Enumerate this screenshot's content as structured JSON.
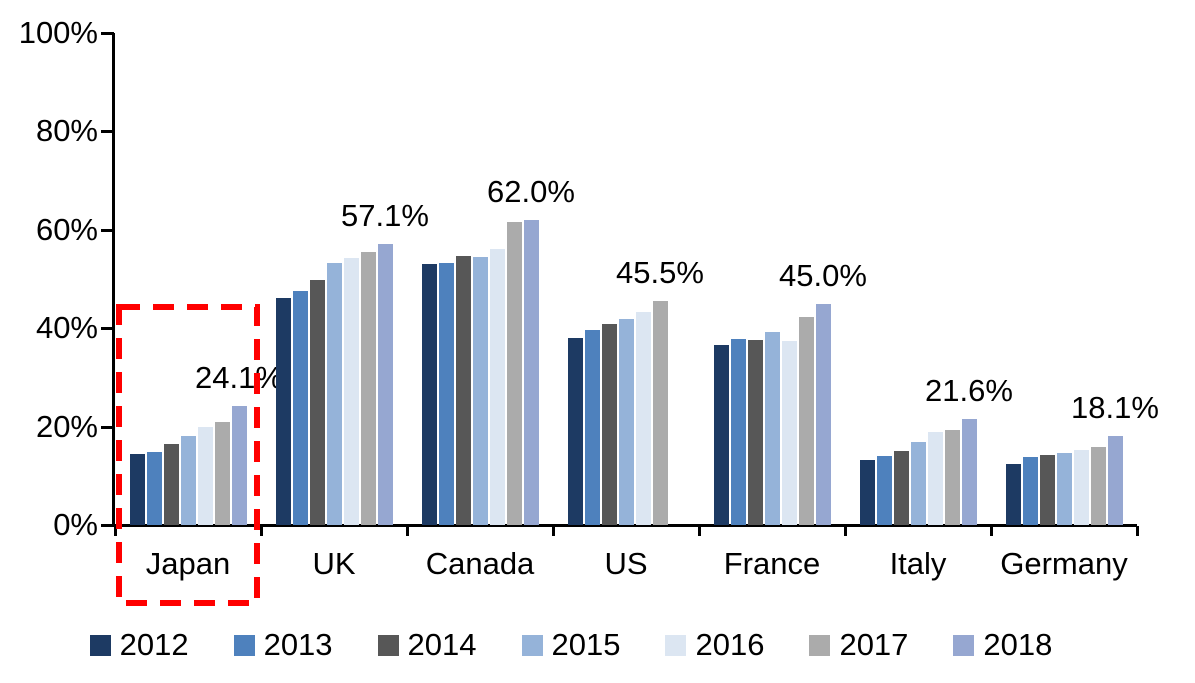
{
  "chart_data": {
    "type": "bar",
    "title": "",
    "xlabel": "",
    "ylabel": "",
    "categories": [
      "Japan",
      "UK",
      "Canada",
      "US",
      "France",
      "Italy",
      "Germany"
    ],
    "series": [
      {
        "name": "2012",
        "color": "#1D3A63",
        "values": [
          14.5,
          46.2,
          53.0,
          38.0,
          36.6,
          13.3,
          12.5
        ]
      },
      {
        "name": "2013",
        "color": "#4E81BD",
        "values": [
          14.8,
          47.5,
          53.3,
          39.7,
          37.8,
          14.0,
          13.8
        ]
      },
      {
        "name": "2014",
        "color": "#575757",
        "values": [
          16.5,
          49.7,
          54.7,
          40.8,
          37.7,
          15.0,
          14.2
        ]
      },
      {
        "name": "2015",
        "color": "#95B3D9",
        "values": [
          18.0,
          53.2,
          54.4,
          41.8,
          39.2,
          16.8,
          14.6
        ]
      },
      {
        "name": "2016",
        "color": "#DCE6F2",
        "values": [
          20.0,
          54.3,
          56.0,
          43.2,
          37.3,
          19.0,
          15.2
        ]
      },
      {
        "name": "2017",
        "color": "#ABABAB",
        "values": [
          21.0,
          55.5,
          61.5,
          45.5,
          42.3,
          19.3,
          15.8
        ]
      },
      {
        "name": "2018",
        "color": "#96A7D1",
        "values": [
          24.1,
          57.1,
          62.0,
          null,
          45.0,
          21.6,
          18.1
        ]
      }
    ],
    "data_labels": [
      "24.1%",
      "57.1%",
      "62.0%",
      "45.5%",
      "45.0%",
      "21.6%",
      "18.1%"
    ],
    "y_ticks": [
      "0%",
      "20%",
      "40%",
      "60%",
      "80%",
      "100%"
    ],
    "ylim": [
      0,
      100
    ],
    "grid": false,
    "legend_position": "bottom",
    "highlight": {
      "category": "Japan",
      "color": "#FF0000",
      "style": "dashed-rectangle"
    }
  }
}
